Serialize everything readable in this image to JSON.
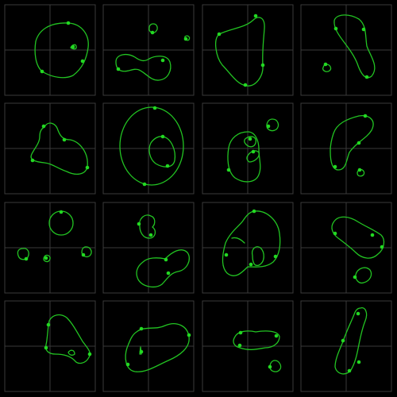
{
  "grid": {
    "rows": 4,
    "cols": 4
  },
  "colors": {
    "background": "#000000",
    "frame": "#3a3a3a",
    "contour": "#22c322",
    "marker": "#22d922"
  },
  "panel_count": 16,
  "marker_shape": "filled-circle"
}
